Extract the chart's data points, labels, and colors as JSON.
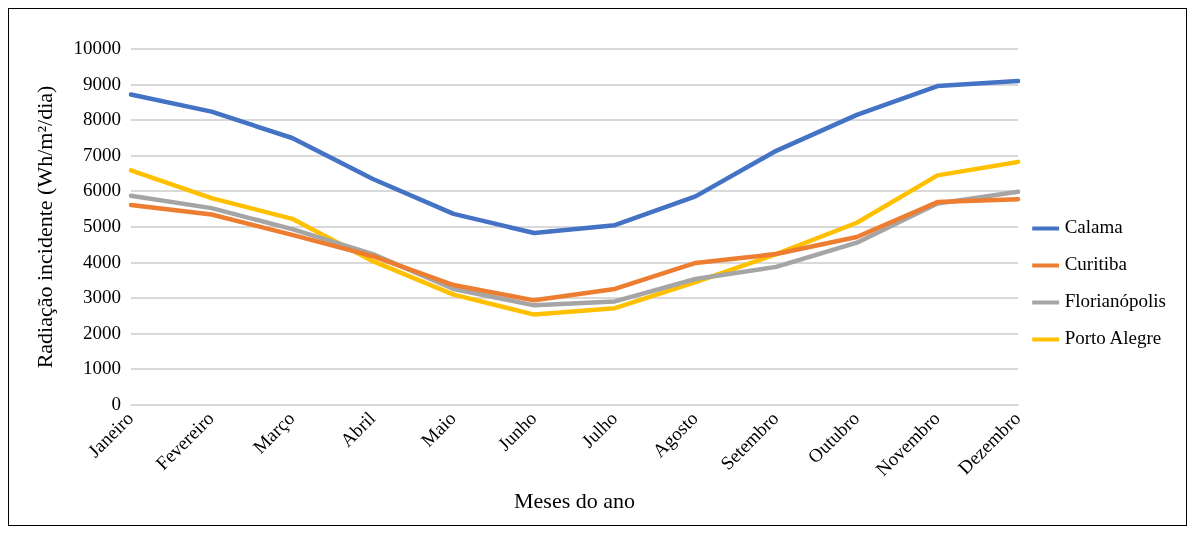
{
  "chart_data": {
    "type": "line",
    "xlabel": "Meses do ano",
    "ylabel": "Radiação incidente (Wh/m²/dia)",
    "categories": [
      "Janeiro",
      "Fevereiro",
      "Março",
      "Abril",
      "Maio",
      "Junho",
      "Julho",
      "Agosto",
      "Setembro",
      "Outubro",
      "Novembro",
      "Dezembro"
    ],
    "series": [
      {
        "name": "Calama",
        "color": "#4472c4",
        "values": [
          8720,
          8240,
          7500,
          6350,
          5370,
          4830,
          5050,
          5860,
          7140,
          8150,
          8960,
          9100
        ]
      },
      {
        "name": "Curitiba",
        "color": "#ed7d31",
        "values": [
          5620,
          5350,
          4780,
          4180,
          3370,
          2940,
          3260,
          3990,
          4240,
          4720,
          5700,
          5780
        ]
      },
      {
        "name": "Florianópolis",
        "color": "#a5a5a5",
        "values": [
          5880,
          5530,
          4940,
          4240,
          3260,
          2800,
          2910,
          3540,
          3880,
          4560,
          5660,
          5990
        ]
      },
      {
        "name": "Porto Alegre",
        "color": "#ffc000",
        "values": [
          6590,
          5810,
          5230,
          4040,
          3100,
          2540,
          2720,
          3450,
          4240,
          5120,
          6450,
          6830
        ]
      }
    ],
    "ylim": [
      0,
      10000
    ],
    "yticks": [
      0,
      1000,
      2000,
      3000,
      4000,
      5000,
      6000,
      7000,
      8000,
      9000,
      10000
    ],
    "grid": "y",
    "legend": "right",
    "marker": "none",
    "line_style": "solid"
  }
}
